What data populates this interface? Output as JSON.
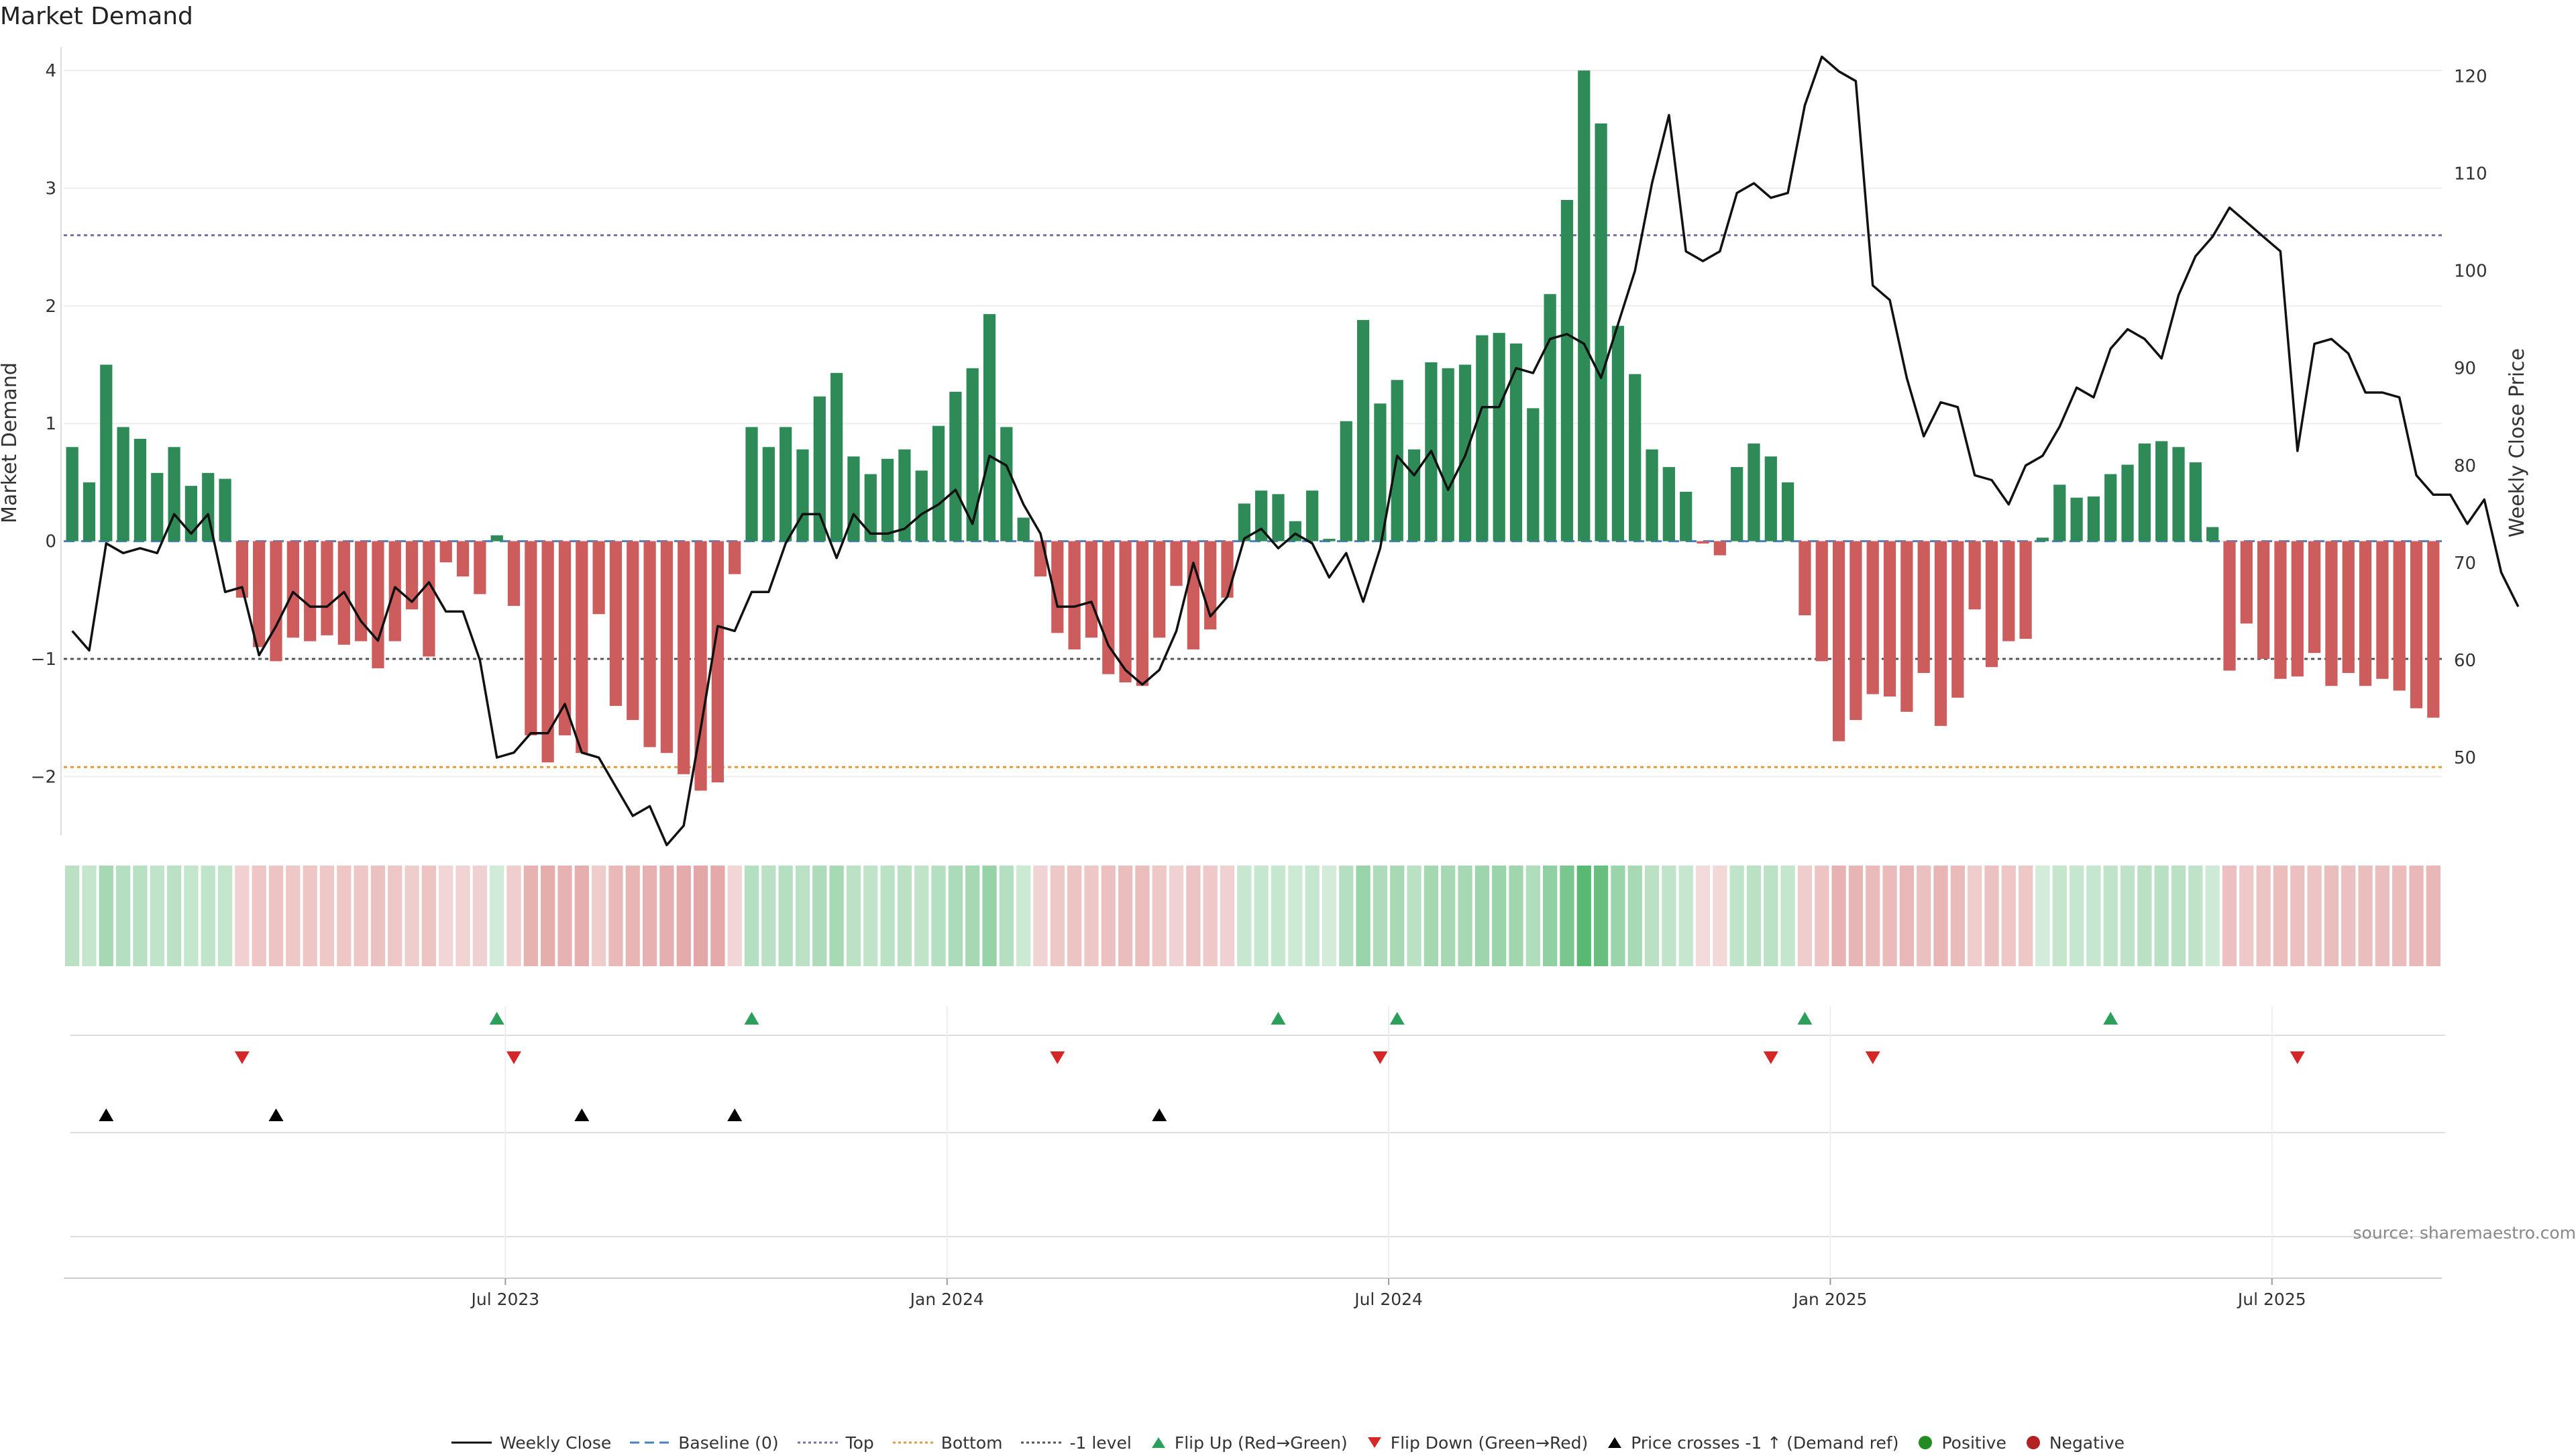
{
  "chart_data": {
    "type": "bar",
    "title": "Market Demand",
    "ylabel_left": "Market Demand",
    "ylabel_right": "Weekly Close Price",
    "ylim_left": [
      -2.5,
      4.2
    ],
    "ylim_right": [
      42,
      123
    ],
    "yticks_left": [
      "4",
      "3",
      "2",
      "1",
      "0",
      "−1",
      "−2"
    ],
    "yticks_right": [
      "120",
      "110",
      "100",
      "90",
      "80",
      "70",
      "60",
      "50"
    ],
    "xticks": [
      "Jul 2023",
      "Jan 2024",
      "Jul 2024",
      "Jan 2025",
      "Jul 2025"
    ],
    "reference_lines": {
      "top": 2.6,
      "bottom": -1.92,
      "minus1": -1.0,
      "baseline": 0
    },
    "demand_values": [
      0.8,
      0.5,
      1.5,
      0.97,
      0.87,
      0.58,
      0.8,
      0.47,
      0.58,
      0.53,
      -0.48,
      -0.9,
      -1.02,
      -0.82,
      -0.85,
      -0.8,
      -0.88,
      -0.85,
      -1.08,
      -0.85,
      -0.58,
      -0.98,
      -0.18,
      -0.3,
      -0.45,
      0.05,
      -0.55,
      -1.65,
      -1.88,
      -1.65,
      -1.8,
      -0.62,
      -1.4,
      -1.52,
      -1.75,
      -1.8,
      -1.98,
      -2.12,
      -2.05,
      -0.28,
      0.97,
      0.8,
      0.97,
      0.78,
      1.23,
      1.43,
      0.72,
      0.57,
      0.7,
      0.78,
      0.6,
      0.98,
      1.27,
      1.47,
      1.93,
      0.97,
      0.2,
      -0.3,
      -0.78,
      -0.92,
      -0.82,
      -1.13,
      -1.2,
      -1.23,
      -0.82,
      -0.38,
      -0.92,
      -0.75,
      -0.48,
      0.32,
      0.43,
      0.4,
      0.17,
      0.43,
      0.02,
      1.02,
      1.88,
      1.17,
      1.37,
      0.78,
      1.52,
      1.47,
      1.5,
      1.75,
      1.77,
      1.68,
      1.13,
      2.1,
      2.9,
      4.0,
      3.55,
      1.83,
      1.42,
      0.78,
      0.63,
      0.42,
      -0.02,
      -0.12,
      0.63,
      0.83,
      0.72,
      0.5,
      -0.63,
      -1.02,
      -1.7,
      -1.52,
      -1.3,
      -1.32,
      -1.45,
      -1.12,
      -1.57,
      -1.33,
      -0.58,
      -1.07,
      -0.85,
      -0.83,
      0.03,
      0.48,
      0.37,
      0.38,
      0.57,
      0.65,
      0.83,
      0.85,
      0.8,
      0.67,
      0.12,
      -1.1,
      -0.7,
      -1.0,
      -1.17,
      -1.15,
      -0.95,
      -1.23,
      -1.12,
      -1.23,
      -1.17,
      -1.27,
      -1.42,
      -1.5
    ],
    "weekly_close": [
      63,
      61,
      72,
      71,
      71.5,
      71,
      75,
      73,
      75,
      67,
      67.5,
      60.5,
      63.5,
      67,
      65.5,
      65.5,
      67,
      64,
      62,
      67.5,
      66,
      68,
      65,
      65,
      60,
      50,
      50.5,
      52.5,
      52.5,
      55.5,
      50.5,
      50,
      47,
      44,
      45,
      41,
      43,
      53,
      63.5,
      63,
      67,
      67,
      72,
      75,
      75,
      70.5,
      75,
      73,
      73,
      73.5,
      75,
      76,
      77.5,
      74,
      81,
      80,
      76,
      73,
      65.5,
      65.5,
      66,
      61.5,
      59,
      57.5,
      59,
      63,
      70,
      64.5,
      66.5,
      72.5,
      73.5,
      71.5,
      73,
      72,
      68.5,
      71,
      66,
      71.5,
      81,
      79,
      81.5,
      77.5,
      81,
      86,
      86,
      90,
      89.5,
      93,
      93.5,
      92.5,
      89,
      94.5,
      100,
      109,
      116,
      102,
      101,
      102,
      108,
      109,
      107.5,
      108,
      117,
      122,
      120.5,
      119.5,
      98.5,
      97,
      89,
      83,
      86.5,
      86,
      79,
      78.5,
      76,
      80,
      81,
      84,
      88,
      87,
      92,
      94,
      93,
      91,
      97.5,
      101.5,
      103.5,
      106.5,
      105,
      103.5,
      102,
      81.5,
      92.5,
      93,
      91.5,
      87.5,
      87.5,
      87,
      79,
      77,
      77,
      74,
      76.5,
      69,
      65.5
    ]
  },
  "flips_up": [
    25,
    40,
    71,
    78,
    102,
    120
  ],
  "flips_down": [
    10,
    26,
    58,
    77,
    100,
    106,
    131
  ],
  "price_crosses": [
    2,
    12,
    30,
    39,
    64
  ],
  "colors": {
    "positive": "#2e8b57",
    "negative": "#cd5c5c",
    "flip_up": "#2ca05a",
    "flip_down": "#d62728",
    "line": "#111111",
    "top_line": "#7b6fa0",
    "bottom_line": "#e29a3a",
    "minus1_line": "#555555",
    "baseline": "#4c7ec0",
    "dot_positive": "#228b22",
    "dot_negative": "#b22222"
  },
  "source_text": "source: sharemaestro.com",
  "legend": [
    {
      "label": "Weekly Close",
      "icon": "solid-line"
    },
    {
      "label": "Baseline (0)",
      "icon": "dashed-line"
    },
    {
      "label": "Top",
      "icon": "dotted-line-purple"
    },
    {
      "label": "Bottom",
      "icon": "dotted-line-orange"
    },
    {
      "label": "-1 level",
      "icon": "dotted-line-grey"
    },
    {
      "label": "Flip Up (Red→Green)",
      "icon": "triangle-up-green"
    },
    {
      "label": "Flip Down (Green→Red)",
      "icon": "triangle-down-red"
    },
    {
      "label": "Price crosses -1 ↑ (Demand ref)",
      "icon": "triangle-up-black"
    },
    {
      "label": "Positive",
      "icon": "dot-green"
    },
    {
      "label": "Negative",
      "icon": "dot-red"
    }
  ]
}
